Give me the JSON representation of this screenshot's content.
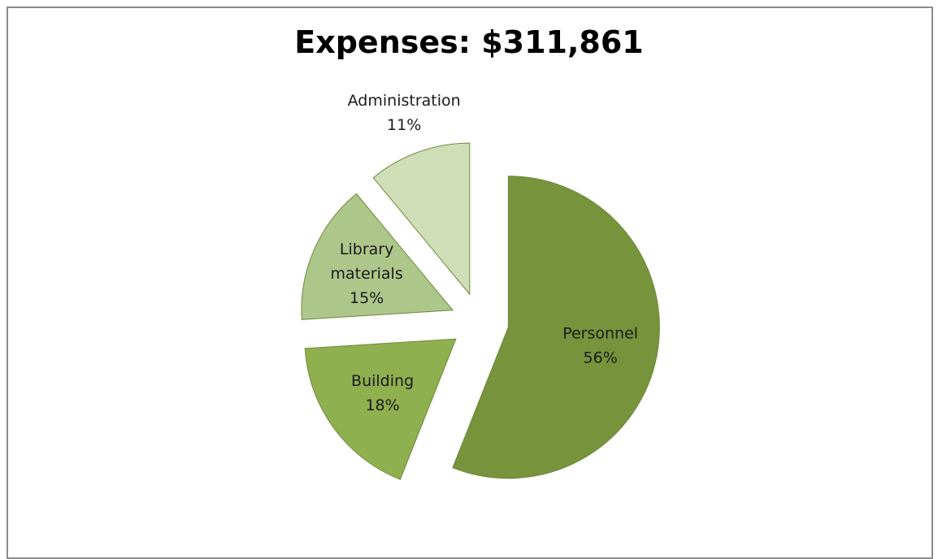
{
  "chart_data": {
    "type": "pie",
    "title": "Expenses: $311,861",
    "exploded": true,
    "slices": [
      {
        "name": "Personnel",
        "percent_label": "56%",
        "value": 56,
        "color": "#77933c"
      },
      {
        "name": "Building",
        "percent_label": "18%",
        "value": 18,
        "color": "#8fb04f"
      },
      {
        "name": "Library materials",
        "label_lines": [
          "Library",
          "materials"
        ],
        "percent_label": "15%",
        "value": 15,
        "color": "#adc68a"
      },
      {
        "name": "Administration",
        "percent_label": "11%",
        "value": 11,
        "color": "#d0deb8"
      }
    ]
  }
}
